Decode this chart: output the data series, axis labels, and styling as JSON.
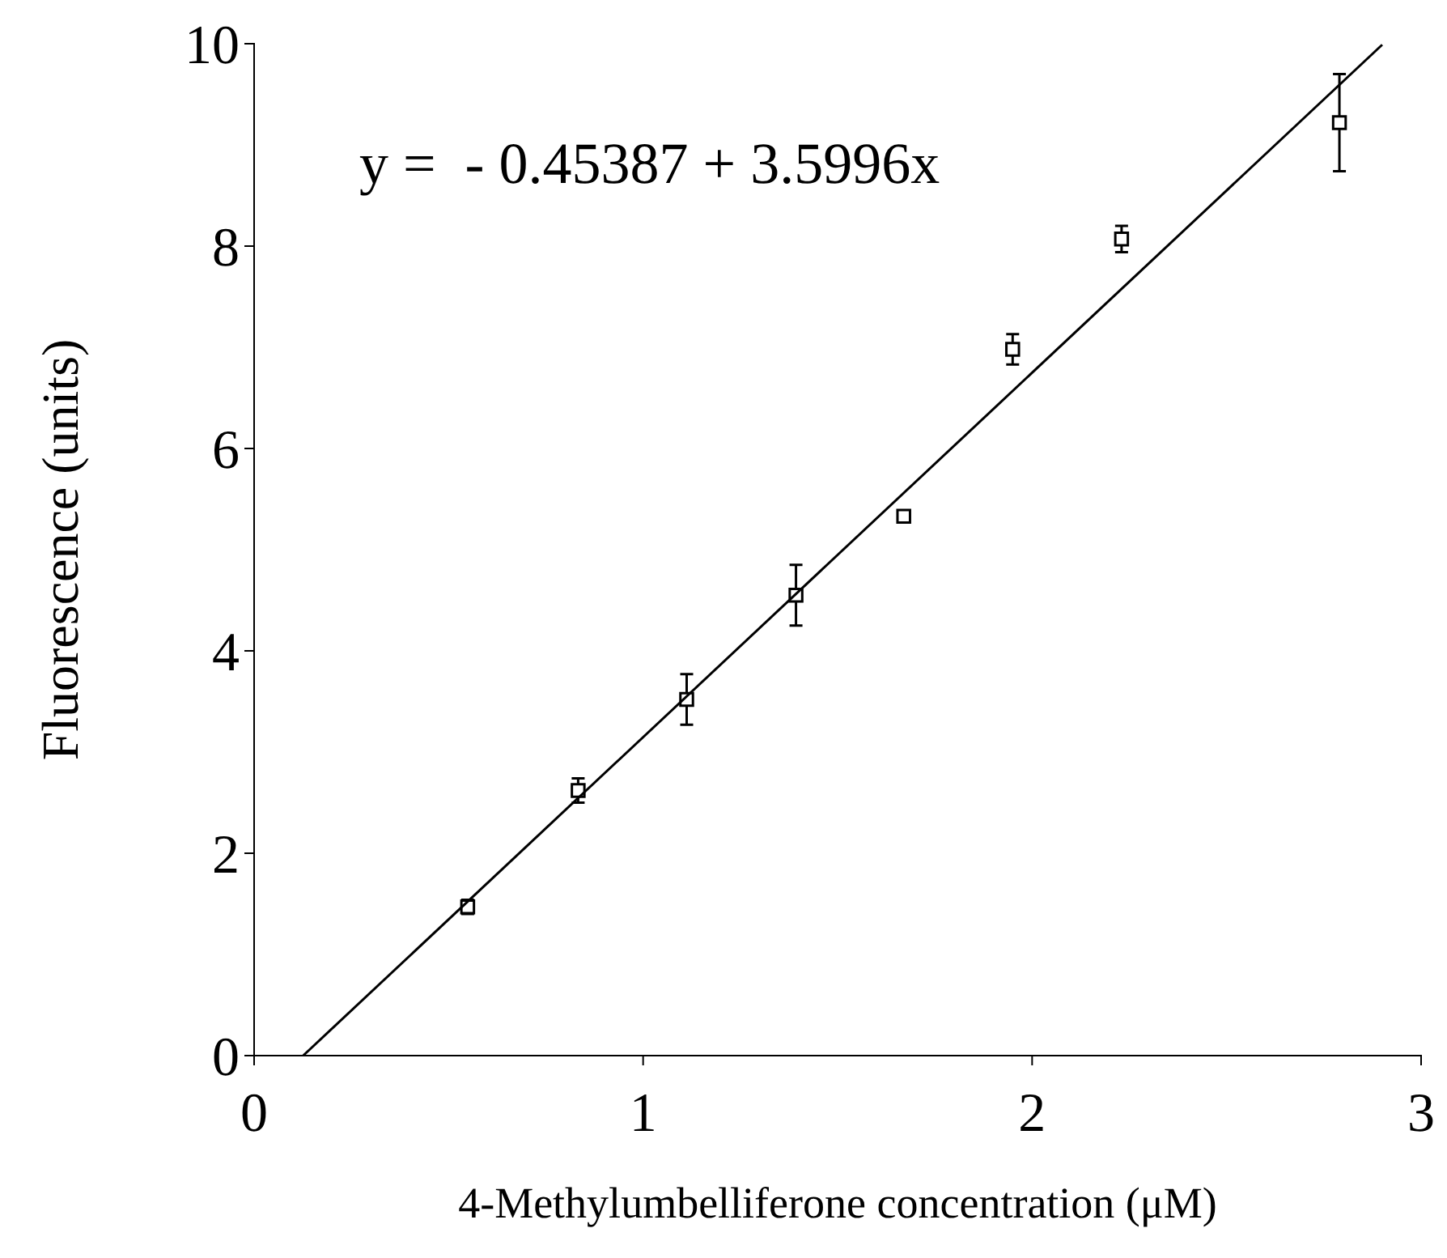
{
  "chart_data": {
    "type": "scatter",
    "xlabel": "4-Methylumbelliferone concentration (μM)",
    "ylabel": "Fluorescence (units)",
    "xlim": [
      0,
      3
    ],
    "xticks": [
      0,
      1,
      2,
      3
    ],
    "ylim": [
      0,
      10
    ],
    "yticks": [
      0,
      2,
      4,
      6,
      8,
      10
    ],
    "grid": false,
    "annotations": [
      "y =  - 0.45387 + 3.5996x"
    ],
    "series": [
      {
        "color": "#000000",
        "marker": "square",
        "x": [
          0.549,
          0.833,
          1.112,
          1.393,
          1.67,
          1.95,
          2.23,
          2.79
        ],
        "values": [
          1.47,
          2.62,
          3.52,
          4.55,
          5.33,
          6.98,
          8.07,
          9.22
        ],
        "errors": [
          0.07,
          0.12,
          0.25,
          0.3,
          null,
          0.15,
          0.13,
          0.48
        ]
      },
      {
        "type": "line",
        "color": "#000000",
        "line_style": "solid",
        "marker": "none",
        "x": [
          0.1261,
          2.9
        ],
        "values": [
          0,
          9.99
        ]
      }
    ]
  }
}
